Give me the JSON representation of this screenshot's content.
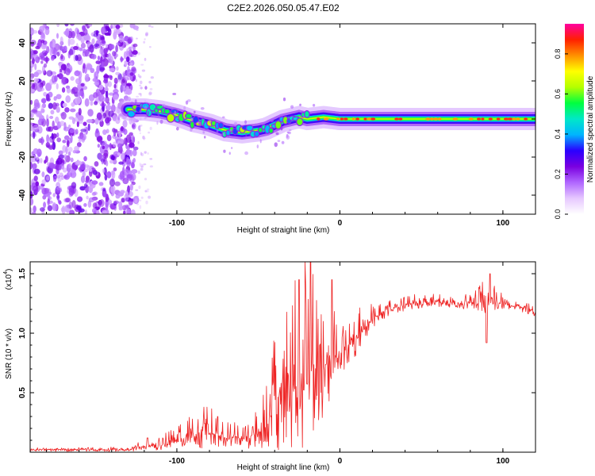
{
  "title": "C2E2.2026.050.05.47.E02",
  "chart_data": [
    {
      "type": "heatmap",
      "name": "spectrogram",
      "xlabel": "Height of straight line (km)",
      "ylabel": "Frequency (Hz)",
      "xlim": [
        -190,
        120
      ],
      "ylim": [
        -50,
        50
      ],
      "xticks": [
        -100,
        0,
        100
      ],
      "yticks": [
        -40,
        -20,
        0,
        20,
        40
      ],
      "xtick_labels": [
        "-100",
        "0",
        "100"
      ],
      "ytick_labels": [
        "-40",
        "-20",
        "0",
        "20",
        "40"
      ],
      "colorbar": {
        "label": "Normalized spectral amplitude",
        "range": [
          0,
          0.95
        ],
        "ticks": [
          0,
          0.2,
          0.4,
          0.6,
          0.8
        ],
        "tick_labels": [
          "0.0",
          "0.2",
          "0.4",
          "0.6",
          "0.8"
        ],
        "colors": [
          "#ffffff",
          "#e6c8ff",
          "#b066ff",
          "#7a00e0",
          "#2a00ff",
          "#00b4ff",
          "#00e8c8",
          "#00ff40",
          "#b4ff00",
          "#ffff00",
          "#ff9000",
          "#ff2000",
          "#ff00a0"
        ]
      },
      "ridge_frequency_hz": {
        "heights_km": [
          -130,
          -120,
          -110,
          -100,
          -90,
          -80,
          -70,
          -60,
          -50,
          -45,
          -40,
          -35,
          -30,
          -25,
          -20,
          -10,
          0,
          20,
          40,
          60,
          80,
          100,
          120
        ],
        "freq_hz": [
          5,
          5,
          4,
          2,
          -1,
          -3,
          -6,
          -7,
          -6,
          -5,
          -3,
          -1,
          0,
          1,
          0,
          1,
          0,
          0,
          0,
          0,
          0,
          0,
          0
        ]
      },
      "noise_region_km": [
        -190,
        -125
      ],
      "noise_fringe_km": [
        -125,
        -115
      ]
    },
    {
      "type": "line",
      "name": "snr",
      "xlabel": "Height of straight line (km)",
      "ylabel": "SNR (10 * v/v)",
      "scale_label": "(x10",
      "scale_exp": "4",
      "scale_close": ")",
      "xlim": [
        -190,
        120
      ],
      "ylim": [
        0,
        1.6
      ],
      "xticks": [
        -100,
        0,
        100
      ],
      "yticks": [
        0.5,
        1.0,
        1.5
      ],
      "xtick_labels": [
        "-100",
        "0",
        "100"
      ],
      "ytick_labels": [
        "0.5",
        "1.0",
        "1.5"
      ],
      "color": "#ee2222",
      "envelope": {
        "heights_km": [
          -190,
          -130,
          -120,
          -110,
          -100,
          -90,
          -80,
          -70,
          -60,
          -50,
          -45,
          -40,
          -35,
          -30,
          -25,
          -20,
          -15,
          -10,
          -5,
          0,
          10,
          20,
          30,
          40,
          50,
          60,
          70,
          80,
          90,
          100,
          110,
          120
        ],
        "snr_base": [
          0.02,
          0.02,
          0.05,
          0.06,
          0.1,
          0.14,
          0.16,
          0.12,
          0.12,
          0.15,
          0.22,
          0.35,
          0.42,
          0.5,
          0.58,
          0.62,
          0.66,
          0.72,
          0.78,
          0.82,
          0.95,
          1.12,
          1.2,
          1.24,
          1.25,
          1.26,
          1.25,
          1.24,
          1.26,
          1.25,
          1.22,
          1.17
        ],
        "snr_spike": [
          0.01,
          0.02,
          0.05,
          0.08,
          0.12,
          0.18,
          0.25,
          0.14,
          0.15,
          0.2,
          0.35,
          0.75,
          0.9,
          0.95,
          1.2,
          1.0,
          0.9,
          0.75,
          0.55,
          0.35,
          0.3,
          0.12,
          0.1,
          0.08,
          0.08,
          0.07,
          0.07,
          0.08,
          0.22,
          0.08,
          0.06,
          0.05
        ]
      },
      "notable_points": [
        {
          "x": -118,
          "y": 0.12
        },
        {
          "x": -75,
          "y": 0.3
        },
        {
          "x": -18,
          "y": 1.6
        },
        {
          "x": -25,
          "y": 1.45
        },
        {
          "x": -5,
          "y": 1.45
        },
        {
          "x": 90,
          "y": 0.92
        },
        {
          "x": 92,
          "y": 1.5
        }
      ]
    }
  ]
}
